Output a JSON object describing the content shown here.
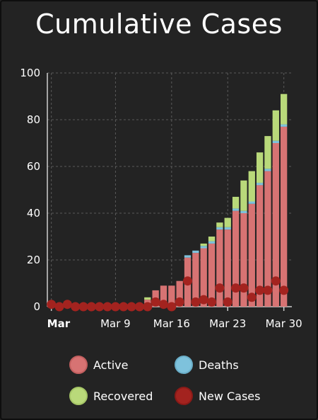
{
  "title": "Cumulative Cases",
  "colors": {
    "background": "#232323",
    "active": "#d77373",
    "deaths": "#7ec2dc",
    "recovered": "#b9d97a",
    "new_cases": "#a3231f",
    "grid": "#5a5a5a"
  },
  "chart_data": {
    "type": "bar",
    "ylim": [
      0,
      100
    ],
    "yticks": [
      0,
      20,
      40,
      60,
      80,
      100
    ],
    "grid": true,
    "x_ticks": [
      {
        "day": 1,
        "label": "Mar",
        "bold": true
      },
      {
        "day": 9,
        "label": "Mar 9",
        "bold": false
      },
      {
        "day": 16,
        "label": "Mar 16",
        "bold": false
      },
      {
        "day": 23,
        "label": "Mar 23",
        "bold": false
      },
      {
        "day": 30,
        "label": "Mar 30",
        "bold": false
      }
    ],
    "days": [
      1,
      2,
      3,
      4,
      5,
      6,
      7,
      8,
      9,
      10,
      11,
      12,
      13,
      14,
      15,
      16,
      17,
      18,
      19,
      20,
      21,
      22,
      23,
      24,
      25,
      26,
      27,
      28,
      29,
      30
    ],
    "series": [
      {
        "name": "Active",
        "type": "bar",
        "values": [
          0,
          0,
          0,
          0,
          0,
          0,
          0,
          0,
          0,
          0,
          0,
          0,
          3,
          7,
          9,
          9,
          11,
          21,
          23,
          25,
          27,
          33,
          33,
          41,
          40,
          44,
          52,
          58,
          70,
          77
        ]
      },
      {
        "name": "Deaths",
        "type": "bar",
        "values": [
          0,
          0,
          0,
          0,
          0,
          0,
          0,
          0,
          0,
          0,
          0,
          0,
          0,
          0,
          0,
          0,
          0,
          1,
          1,
          1,
          1,
          1,
          1,
          1,
          1,
          1,
          1,
          1,
          1,
          1
        ]
      },
      {
        "name": "Recovered",
        "type": "bar",
        "values": [
          0,
          0,
          0,
          0,
          0,
          0,
          0,
          0,
          0,
          0,
          0,
          0,
          1,
          0,
          0,
          0,
          0,
          0,
          0,
          1,
          2,
          2,
          4,
          5,
          13,
          13,
          13,
          14,
          13,
          13
        ]
      },
      {
        "name": "New Cases",
        "type": "scatter",
        "values": [
          1,
          0,
          1,
          0,
          0,
          0,
          0,
          0,
          0,
          0,
          0,
          0,
          0,
          2,
          1,
          0,
          2,
          11,
          2,
          3,
          2,
          8,
          2,
          8,
          8,
          4,
          7,
          7,
          11,
          7
        ]
      }
    ]
  },
  "legend": [
    {
      "label": "Active",
      "color": "#d77373"
    },
    {
      "label": "Deaths",
      "color": "#7ec2dc"
    },
    {
      "label": "Recovered",
      "color": "#b9d97a"
    },
    {
      "label": "New Cases",
      "color": "#a3231f"
    }
  ]
}
